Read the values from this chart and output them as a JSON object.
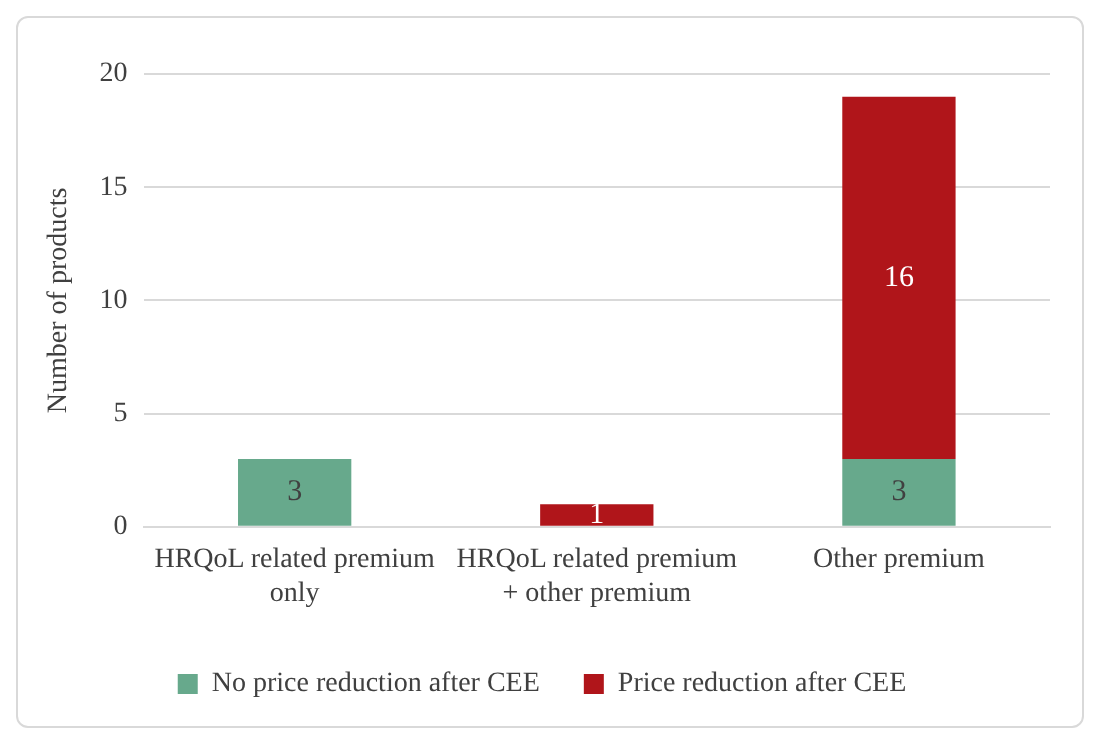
{
  "chart_data": {
    "type": "bar",
    "ylabel": "Number of products",
    "categories": [
      "HRQoL related premium only",
      "HRQoL related premium + other premium",
      "Other premium"
    ],
    "stacked": true,
    "series": [
      {
        "name": "No price reduction after CEE",
        "color": "#67a98c",
        "values": [
          3,
          0,
          3
        ],
        "value_labels": [
          "3",
          null,
          "3"
        ]
      },
      {
        "name": "Price reduction after CEE",
        "color": "#b0151a",
        "values": [
          0,
          1,
          16
        ],
        "value_labels": [
          null,
          "1",
          "16"
        ]
      }
    ],
    "ylim": [
      0,
      20
    ],
    "yticks": [
      0,
      5,
      10,
      15,
      20
    ],
    "grid": "y",
    "legend": "bottom"
  }
}
